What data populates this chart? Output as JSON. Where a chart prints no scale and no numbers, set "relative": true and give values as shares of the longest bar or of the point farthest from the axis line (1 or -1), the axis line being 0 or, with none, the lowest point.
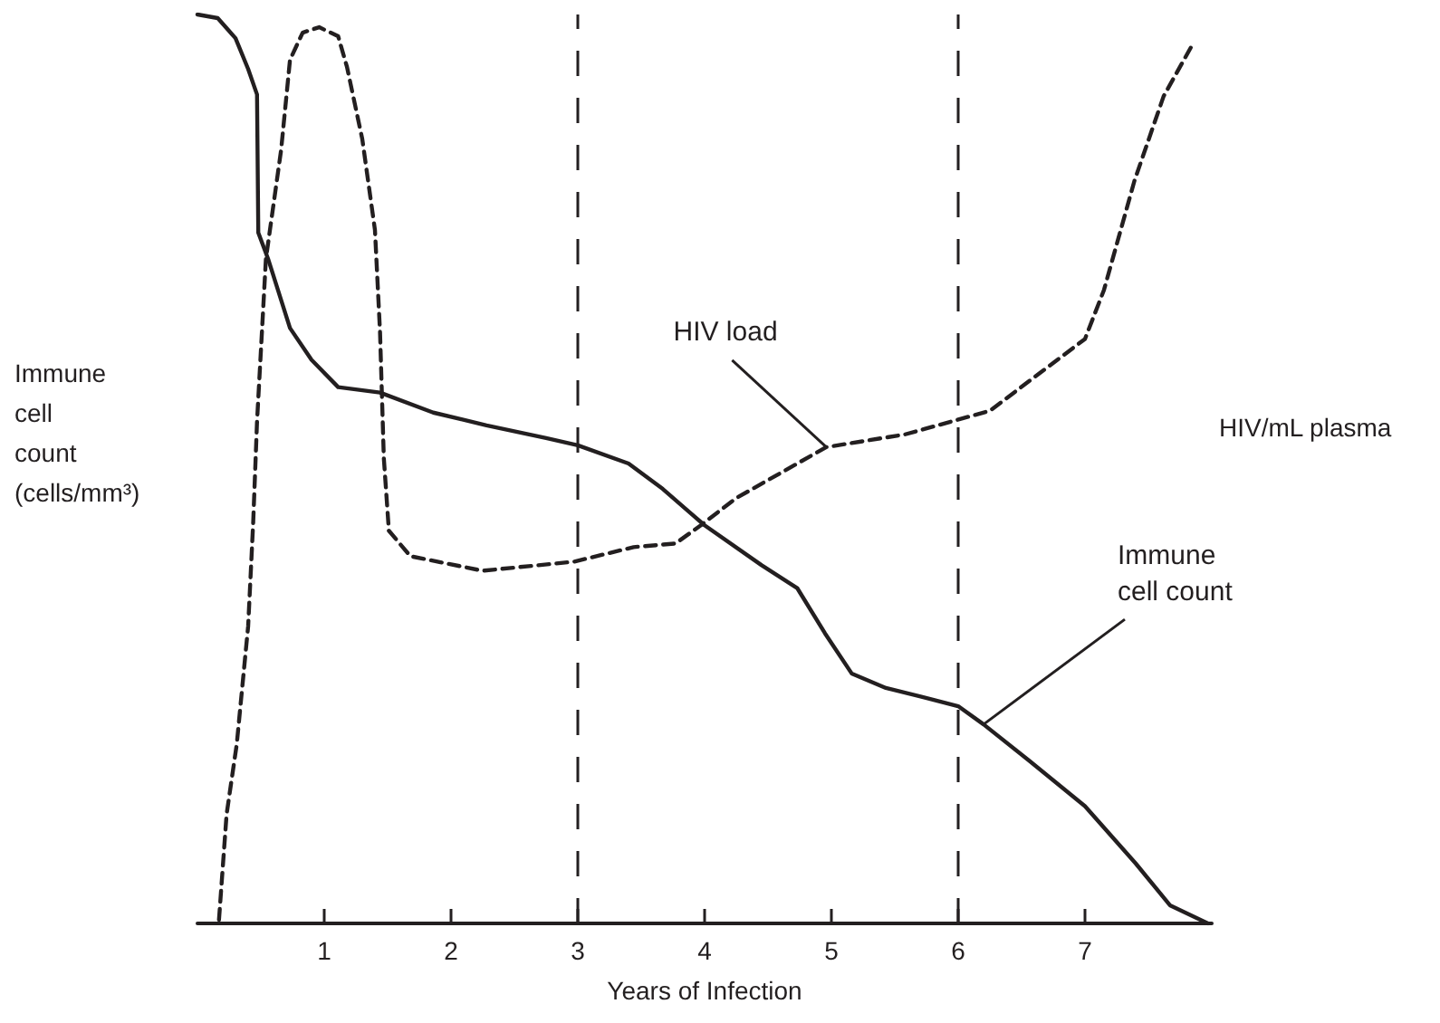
{
  "chart_data": {
    "type": "line",
    "relative": true,
    "xlabel": "Years of Infection",
    "ylabel": "Immune cell count (cells/mm³)",
    "y2label": "HIV/mL plasma",
    "xlim": [
      0,
      8
    ],
    "xticks": [
      1,
      2,
      3,
      4,
      5,
      6,
      7
    ],
    "grid": false,
    "marker": "none",
    "series": [
      {
        "color": "#231f20",
        "line_style": "solid",
        "x": [
          0,
          0.16,
          0.3,
          0.4,
          0.47,
          0.48,
          0.56,
          0.73,
          0.9,
          1.11,
          1.44,
          1.86,
          2.28,
          2.75,
          3.0,
          3.4,
          3.67,
          4.0,
          4.45,
          4.73,
          4.95,
          5.16,
          5.43,
          5.78,
          6.0,
          6.2,
          6.56,
          7.0,
          7.4,
          7.67,
          7.97
        ],
        "values": [
          1.0,
          0.996,
          0.974,
          0.94,
          0.912,
          0.76,
          0.73,
          0.655,
          0.62,
          0.59,
          0.584,
          0.562,
          0.548,
          0.534,
          0.526,
          0.506,
          0.478,
          0.438,
          0.394,
          0.369,
          0.319,
          0.275,
          0.259,
          0.247,
          0.239,
          0.219,
          0.179,
          0.129,
          0.066,
          0.02,
          0.0
        ]
      },
      {
        "color": "#231f20",
        "line_style": "dashed",
        "x": [
          0.17,
          0.23,
          0.31,
          0.4,
          0.44,
          0.47,
          0.54,
          0.66,
          0.73,
          0.83,
          0.96,
          1.11,
          1.18,
          1.3,
          1.4,
          1.44,
          1.47,
          1.51,
          1.68,
          2.25,
          2.97,
          3.44,
          3.77,
          3.97,
          4.25,
          4.96,
          5.58,
          6.25,
          7.0,
          7.15,
          7.39,
          7.62,
          7.86
        ],
        "values": [
          0.004,
          0.12,
          0.197,
          0.327,
          0.442,
          0.552,
          0.731,
          0.851,
          0.95,
          0.98,
          0.986,
          0.976,
          0.942,
          0.863,
          0.763,
          0.651,
          0.512,
          0.432,
          0.404,
          0.388,
          0.398,
          0.414,
          0.418,
          0.438,
          0.468,
          0.524,
          0.538,
          0.564,
          0.643,
          0.697,
          0.817,
          0.91,
          0.97
        ]
      }
    ],
    "ref_lines": [
      {
        "axis": "x",
        "value": 3,
        "line_style": "dashed",
        "color": "#231f20"
      },
      {
        "axis": "x",
        "value": 6,
        "line_style": "dashed",
        "color": "#231f20"
      }
    ],
    "annotations": [
      {
        "text": "HIV load",
        "x": 4.96,
        "y": 0.524
      },
      {
        "text": "Immune cell count",
        "x": 6.2,
        "y": 0.219
      }
    ]
  }
}
